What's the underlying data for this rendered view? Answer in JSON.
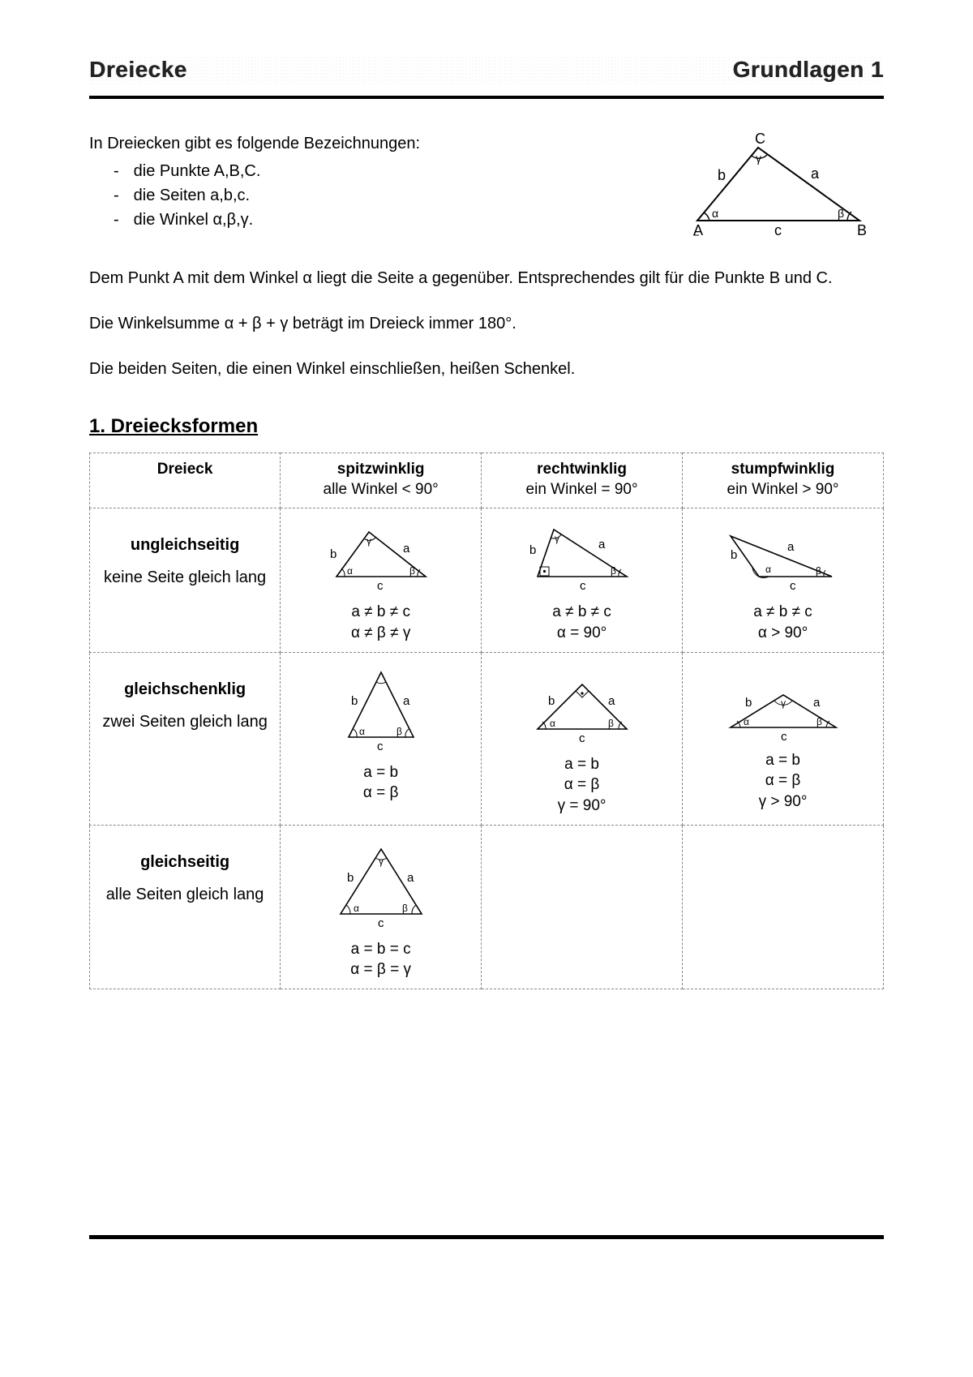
{
  "header": {
    "left": "Dreiecke",
    "right": "Grundlagen 1"
  },
  "intro": {
    "lead": "In Dreiecken gibt es folgende Bezeichnungen:",
    "items": [
      "die Punkte A,B,C.",
      "die Seiten a,b,c.",
      "die Winkel α,β,γ."
    ]
  },
  "paragraphs": {
    "p1": "Dem Punkt A mit dem Winkel α liegt die Seite a gegenüber. Entsprechendes gilt für die Punkte B und C.",
    "p2": "Die Winkelsumme α + β + γ beträgt im Dreieck immer 180°.",
    "p3": "Die beiden Seiten, die einen Winkel einschließen, heißen Schenkel."
  },
  "section_title": "1.  Dreiecksformen",
  "table": {
    "head": {
      "c0": "Dreieck",
      "c1": {
        "title": "spitzwinklig",
        "sub": "alle Winkel < 90°"
      },
      "c2": {
        "title": "rechtwinklig",
        "sub": "ein Winkel = 90°"
      },
      "c3": {
        "title": "stumpfwinklig",
        "sub": "ein Winkel > 90°"
      }
    },
    "rows": {
      "r1": {
        "label_main": "ungleichseitig",
        "label_sub": "keine Seite gleich lang",
        "c1": "a ≠ b ≠ c\nα ≠ β ≠ γ",
        "c2": "a ≠ b ≠ c\nα = 90°",
        "c3": "a ≠ b ≠ c\nα > 90°"
      },
      "r2": {
        "label_main": "gleichschenklig",
        "label_sub": "zwei Seiten gleich lang",
        "c1": "a = b\nα = β",
        "c2": "a = b\nα = β\nγ = 90°",
        "c3": "a = b\nα = β\nγ > 90°"
      },
      "r3": {
        "label_main": "gleichseitig",
        "label_sub": "alle Seiten gleich lang",
        "c1": "a = b = c\nα = β = γ",
        "c2": "",
        "c3": ""
      }
    }
  },
  "diagrams": {
    "main": {
      "A": [
        20,
        100
      ],
      "B": [
        220,
        100
      ],
      "C": [
        100,
        15
      ],
      "labels": {
        "A": "A",
        "B": "B",
        "C": "C",
        "a": "a",
        "b": "b",
        "c": "c",
        "alpha": "α",
        "beta": "β",
        "gamma": "γ"
      }
    },
    "cell": {
      "labels": {
        "a": "a",
        "b": "b",
        "c": "c",
        "alpha": "α",
        "beta": "β",
        "gamma": "γ"
      }
    },
    "style": {
      "stroke": "#000",
      "stroke_width": 1.6,
      "font_size": 18,
      "small_font_size": 15
    }
  }
}
